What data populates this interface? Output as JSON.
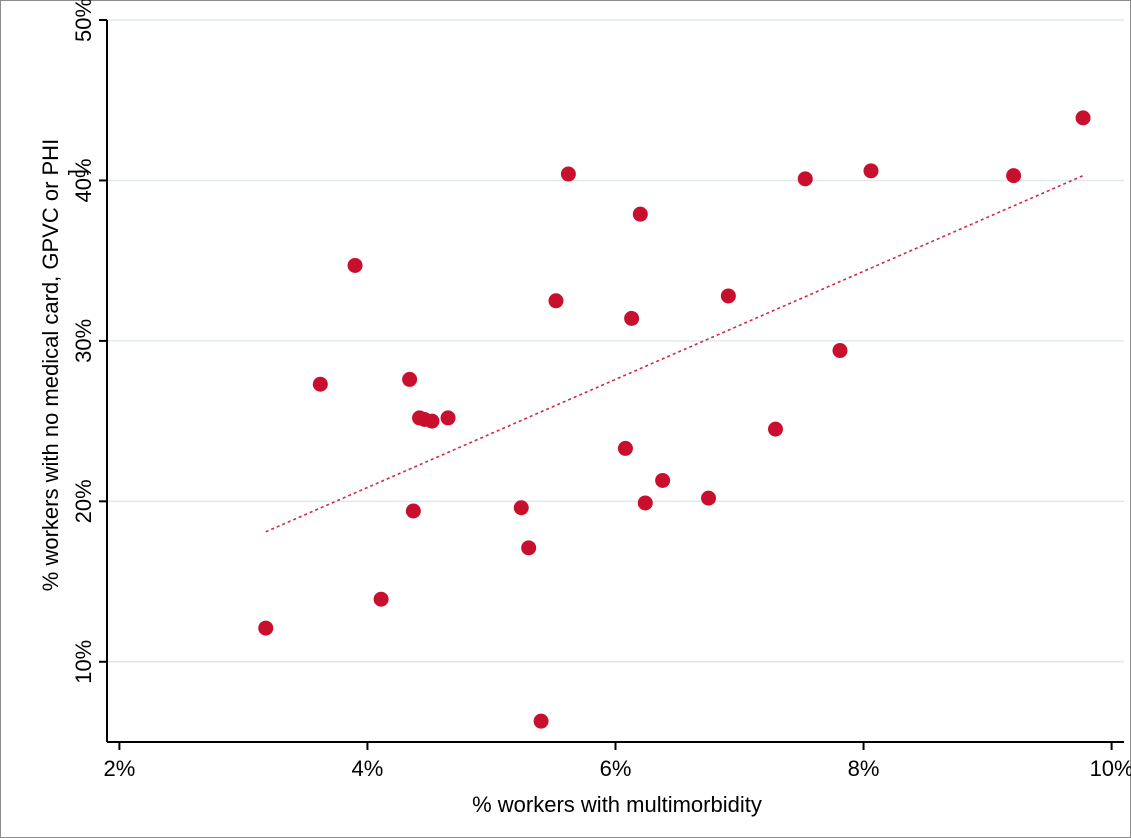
{
  "chart_data": {
    "type": "scatter",
    "xlabel": "% workers with multimorbidity",
    "ylabel_lines": [
      "% workers with no medical card, GPVC or PHI",
      "]"
    ],
    "xlim": [
      1.9,
      10.1
    ],
    "ylim": [
      5,
      50
    ],
    "xticks": [
      {
        "value": 2,
        "label": "2%"
      },
      {
        "value": 4,
        "label": "4%"
      },
      {
        "value": 6,
        "label": "6%"
      },
      {
        "value": 8,
        "label": "8%"
      },
      {
        "value": 10,
        "label": "10%"
      }
    ],
    "yticks": [
      {
        "value": 10,
        "label": "10%"
      },
      {
        "value": 20,
        "label": "20%"
      },
      {
        "value": 30,
        "label": "30%"
      },
      {
        "value": 40,
        "label": "40%"
      },
      {
        "value": 50,
        "label": "50%"
      }
    ],
    "grid": true,
    "colors": {
      "points": "#c8102e",
      "fitline": "#d0284a",
      "grid": "#dfe9ec",
      "axis": "#000000"
    },
    "points": [
      {
        "x": 3.18,
        "y": 12.1
      },
      {
        "x": 3.62,
        "y": 27.3
      },
      {
        "x": 3.9,
        "y": 34.7
      },
      {
        "x": 4.11,
        "y": 13.9
      },
      {
        "x": 4.34,
        "y": 27.6
      },
      {
        "x": 4.37,
        "y": 19.4
      },
      {
        "x": 4.42,
        "y": 25.2
      },
      {
        "x": 4.46,
        "y": 25.1
      },
      {
        "x": 4.52,
        "y": 25.0
      },
      {
        "x": 4.65,
        "y": 25.2
      },
      {
        "x": 5.24,
        "y": 19.6
      },
      {
        "x": 5.3,
        "y": 17.1
      },
      {
        "x": 5.4,
        "y": 6.3
      },
      {
        "x": 5.52,
        "y": 32.5
      },
      {
        "x": 5.62,
        "y": 40.4
      },
      {
        "x": 6.08,
        "y": 23.3
      },
      {
        "x": 6.13,
        "y": 31.4
      },
      {
        "x": 6.2,
        "y": 37.9
      },
      {
        "x": 6.24,
        "y": 19.9
      },
      {
        "x": 6.38,
        "y": 21.3
      },
      {
        "x": 6.75,
        "y": 20.2
      },
      {
        "x": 6.91,
        "y": 32.8
      },
      {
        "x": 7.29,
        "y": 24.5
      },
      {
        "x": 7.53,
        "y": 40.1
      },
      {
        "x": 7.81,
        "y": 29.4
      },
      {
        "x": 8.06,
        "y": 40.6
      },
      {
        "x": 9.21,
        "y": 40.3
      },
      {
        "x": 9.77,
        "y": 43.9
      }
    ],
    "fit_line": {
      "x": [
        3.18,
        9.77
      ],
      "y": [
        18.1,
        40.3
      ]
    }
  }
}
